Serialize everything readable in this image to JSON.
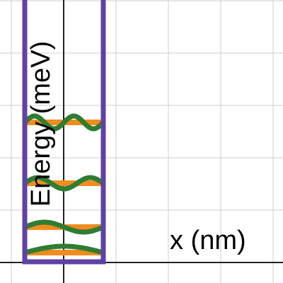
{
  "y_axis_label": "Energy (meV)",
  "x_axis_label": "x (nm)"
}
